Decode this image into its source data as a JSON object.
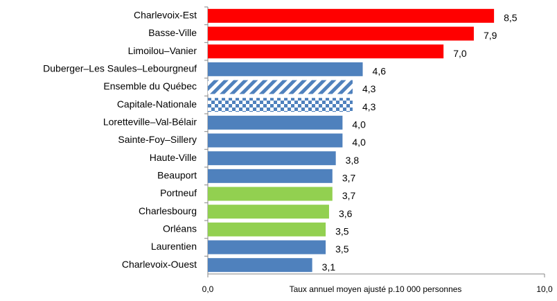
{
  "chart_data": {
    "type": "hbar",
    "categories": [
      "Charlevoix-Est",
      "Basse-Ville",
      "Limoilou–Vanier",
      "Duberger–Les Saules–Lebourgneuf",
      "Ensemble du Québec",
      "Capitale-Nationale",
      "Loretteville–Val-Bélair",
      "Sainte-Foy–Sillery",
      "Haute-Ville",
      "Beauport",
      "Portneuf",
      "Charlesbourg",
      "Orléans",
      "Laurentien",
      "Charlevoix-Ouest"
    ],
    "values": [
      8.5,
      7.9,
      7.0,
      4.6,
      4.3,
      4.3,
      4.0,
      4.0,
      3.8,
      3.7,
      3.7,
      3.6,
      3.5,
      3.5,
      3.1
    ],
    "value_labels": [
      "8,5",
      "7,9",
      "7,0",
      "4,6",
      "4,3",
      "4,3",
      "4,0",
      "4,0",
      "3,8",
      "3,7",
      "3,7",
      "3,6",
      "3,5",
      "3,5",
      "3,1"
    ],
    "colors": [
      "#ff0000",
      "#ff0000",
      "#ff0000",
      "#4f81bd",
      "#4f81bd",
      "#4f81bd",
      "#4f81bd",
      "#4f81bd",
      "#4f81bd",
      "#4f81bd",
      "#92d050",
      "#92d050",
      "#92d050",
      "#4f81bd",
      "#4f81bd"
    ],
    "patterns": [
      "solid",
      "solid",
      "solid",
      "solid",
      "stripes",
      "checker",
      "solid",
      "solid",
      "solid",
      "solid",
      "solid",
      "solid",
      "solid",
      "solid",
      "solid"
    ],
    "xlabel": "Taux annuel moyen ajusté p.10 000 personnes",
    "xlim": [
      0,
      10
    ],
    "xticks": [
      {
        "value": 0,
        "label": "0,0"
      },
      {
        "value": 10,
        "label": "10,0"
      }
    ]
  }
}
